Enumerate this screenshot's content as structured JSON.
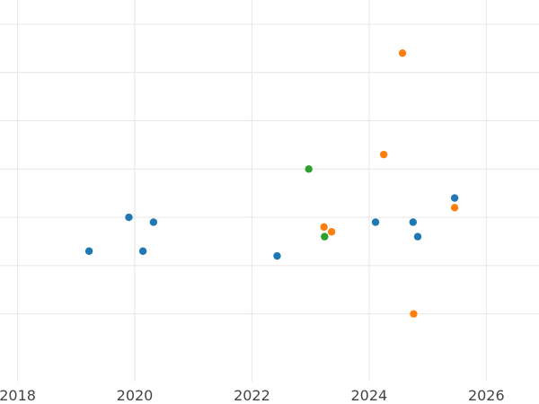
{
  "chart_data": {
    "type": "scatter",
    "title": "",
    "xlabel": "",
    "ylabel": "",
    "xlim": [
      2017.7,
      2026.9
    ],
    "ylim": [
      -1.4,
      6.5
    ],
    "grid": true,
    "x_ticks": [
      2018,
      2020,
      2022,
      2024,
      2026
    ],
    "y_gridlines": [
      0,
      1,
      2,
      3,
      4,
      5,
      6
    ],
    "series": [
      {
        "color": "#1f77b4",
        "points": [
          {
            "x": 2019.22,
            "y": 1.3
          },
          {
            "x": 2019.9,
            "y": 2.0
          },
          {
            "x": 2020.14,
            "y": 1.3
          },
          {
            "x": 2020.32,
            "y": 1.9
          },
          {
            "x": 2022.43,
            "y": 1.2
          },
          {
            "x": 2024.11,
            "y": 1.9
          },
          {
            "x": 2024.75,
            "y": 1.9
          },
          {
            "x": 2024.83,
            "y": 1.6
          },
          {
            "x": 2025.46,
            "y": 2.4
          }
        ]
      },
      {
        "color": "#ff7f0e",
        "points": [
          {
            "x": 2023.23,
            "y": 1.8
          },
          {
            "x": 2023.36,
            "y": 1.7
          },
          {
            "x": 2024.25,
            "y": 3.3
          },
          {
            "x": 2024.57,
            "y": 5.4
          },
          {
            "x": 2024.76,
            "y": 0.0
          },
          {
            "x": 2025.46,
            "y": 2.2
          }
        ]
      },
      {
        "color": "#2ca02c",
        "points": [
          {
            "x": 2022.97,
            "y": 3.0
          },
          {
            "x": 2023.24,
            "y": 1.6
          }
        ]
      }
    ]
  }
}
